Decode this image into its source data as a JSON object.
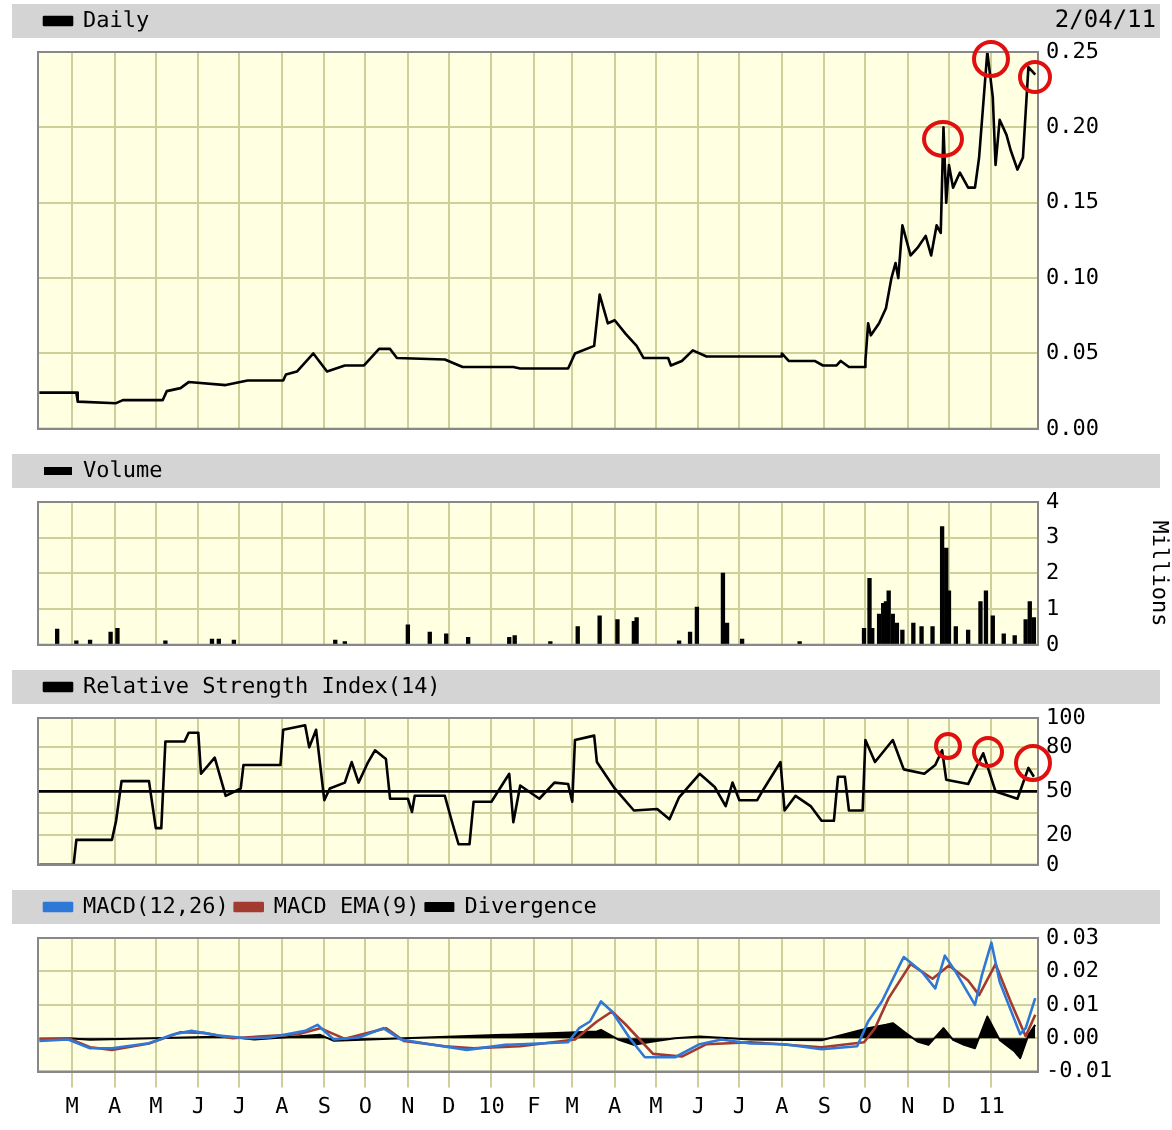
{
  "chart_data": [
    {
      "type": "line",
      "annotations": [
        "2/04/11"
      ],
      "legend": "top left",
      "grid": true,
      "tick_labels": "y",
      "series": [
        {
          "name": "Daily",
          "color": "#000000",
          "x": [
            "2009-02-05",
            "2009-03-04",
            "2009-03-05",
            "2009-04-02",
            "2009-04-07",
            "2009-05-06",
            "2009-05-09",
            "2009-05-19",
            "2009-05-25",
            "2009-06-21",
            "2009-07-07",
            "2009-08-02",
            "2009-08-04",
            "2009-08-12",
            "2009-08-24",
            "2009-09-03",
            "2009-09-16",
            "2009-09-30",
            "2009-10-11",
            "2009-10-19",
            "2009-10-24",
            "2009-11-28",
            "2009-12-11",
            "2010-01-17",
            "2010-01-22",
            "2010-02-26",
            "2010-03-03",
            "2010-03-17",
            "2010-03-21",
            "2010-03-27",
            "2010-04-01",
            "2010-04-09",
            "2010-04-17",
            "2010-04-22",
            "2010-05-10",
            "2010-05-12",
            "2010-05-20",
            "2010-05-28",
            "2010-06-07",
            "2010-07-31",
            "2010-08-01",
            "2010-08-06",
            "2010-08-25",
            "2010-08-31",
            "2010-09-10",
            "2010-09-13",
            "2010-09-19",
            "2010-09-30",
            "2010-10-01",
            "2010-10-03",
            "2010-10-05",
            "2010-10-11",
            "2010-10-16",
            "2010-10-20",
            "2010-10-23",
            "2010-10-25",
            "2010-10-28",
            "2010-11-03",
            "2010-11-08",
            "2010-11-14",
            "2010-11-18",
            "2010-11-22",
            "2010-11-25",
            "2010-11-27",
            "2010-11-29",
            "2010-12-01",
            "2010-12-04",
            "2010-12-09",
            "2010-12-15",
            "2010-12-20",
            "2010-12-23",
            "2010-12-29",
            "2011-01-02",
            "2011-01-04",
            "2011-01-07",
            "2011-01-12",
            "2011-01-15",
            "2011-01-20",
            "2011-01-24",
            "2011-01-28",
            "2011-02-02"
          ],
          "values": [
            0.024,
            0.024,
            0.018,
            0.017,
            0.019,
            0.019,
            0.025,
            0.027,
            0.031,
            0.029,
            0.032,
            0.032,
            0.036,
            0.038,
            0.05,
            0.038,
            0.042,
            0.042,
            0.053,
            0.053,
            0.047,
            0.046,
            0.041,
            0.041,
            0.04,
            0.04,
            0.05,
            0.055,
            0.089,
            0.07,
            0.072,
            0.063,
            0.055,
            0.047,
            0.047,
            0.042,
            0.045,
            0.052,
            0.048,
            0.048,
            0.05,
            0.045,
            0.045,
            0.042,
            0.042,
            0.045,
            0.041,
            0.041,
            0.045,
            0.07,
            0.062,
            0.07,
            0.08,
            0.1,
            0.11,
            0.1,
            0.135,
            0.115,
            0.12,
            0.128,
            0.115,
            0.135,
            0.13,
            0.2,
            0.15,
            0.175,
            0.16,
            0.17,
            0.16,
            0.16,
            0.18,
            0.25,
            0.22,
            0.175,
            0.205,
            0.195,
            0.185,
            0.172,
            0.18,
            0.24,
            0.235
          ]
        }
      ],
      "xlim": [
        "2009-02-04",
        "2011-02-04"
      ],
      "xticks": [
        "2009-03-01",
        "2009-04-01",
        "2009-05-01",
        "2009-06-01",
        "2009-07-01",
        "2009-08-01",
        "2009-09-01",
        "2009-10-01",
        "2009-11-01",
        "2009-12-01",
        "2010-01-01",
        "2010-02-01",
        "2010-03-01",
        "2010-04-01",
        "2010-05-01",
        "2010-06-01",
        "2010-07-01",
        "2010-08-01",
        "2010-09-01",
        "2010-10-01",
        "2010-11-01",
        "2010-12-01",
        "2011-01-01"
      ],
      "ylim": [
        0,
        0.25
      ],
      "yticks": [
        {
          "value": 0,
          "label": "0.00"
        },
        {
          "value": 0.05,
          "label": "0.05"
        },
        {
          "value": 0.1,
          "label": "0.10"
        },
        {
          "value": 0.15,
          "label": "0.15"
        },
        {
          "value": 0.2,
          "label": "0.20"
        },
        {
          "value": 0.25,
          "label": "0.25"
        }
      ]
    },
    {
      "type": "bar",
      "ylabel": "Millions",
      "legend": "top left",
      "grid": true,
      "tick_labels": "y",
      "series": [
        {
          "name": "Volume",
          "color": "#000000",
          "x": [
            "2009-02-18",
            "2009-03-04",
            "2009-03-14",
            "2009-03-29",
            "2009-04-03",
            "2009-05-08",
            "2009-06-11",
            "2009-06-16",
            "2009-06-27",
            "2009-09-09",
            "2009-09-16",
            "2009-11-01",
            "2009-11-17",
            "2009-11-29",
            "2009-12-15",
            "2010-01-14",
            "2010-01-18",
            "2010-02-13",
            "2010-03-05",
            "2010-03-21",
            "2010-04-03",
            "2010-04-15",
            "2010-04-17",
            "2010-05-18",
            "2010-05-26",
            "2010-05-31",
            "2010-06-19",
            "2010-06-22",
            "2010-07-03",
            "2010-08-14",
            "2010-09-30",
            "2010-10-04",
            "2010-10-06",
            "2010-10-11",
            "2010-10-14",
            "2010-10-16",
            "2010-10-18",
            "2010-10-21",
            "2010-10-24",
            "2010-10-28",
            "2010-11-05",
            "2010-11-11",
            "2010-11-19",
            "2010-11-26",
            "2010-11-29",
            "2010-12-01",
            "2010-12-06",
            "2010-12-15",
            "2010-12-24",
            "2010-12-28",
            "2011-01-02",
            "2011-01-10",
            "2011-01-18",
            "2011-01-26",
            "2011-01-29",
            "2011-02-01"
          ],
          "values": [
            0.43,
            0.1,
            0.12,
            0.35,
            0.45,
            0.1,
            0.15,
            0.15,
            0.12,
            0.12,
            0.08,
            0.55,
            0.35,
            0.3,
            0.2,
            0.2,
            0.25,
            0.08,
            0.5,
            0.8,
            0.7,
            0.65,
            0.75,
            0.1,
            0.35,
            1.05,
            2.0,
            0.6,
            0.15,
            0.08,
            0.45,
            1.85,
            0.45,
            0.85,
            1.15,
            1.2,
            1.5,
            0.85,
            0.6,
            0.4,
            0.6,
            0.5,
            0.5,
            3.3,
            2.7,
            1.5,
            0.5,
            0.4,
            1.2,
            1.5,
            0.8,
            0.3,
            0.25,
            0.7,
            1.2,
            0.75
          ]
        }
      ],
      "xlim": [
        "2009-02-04",
        "2011-02-04"
      ],
      "xticks": [
        "2009-03-01",
        "2009-04-01",
        "2009-05-01",
        "2009-06-01",
        "2009-07-01",
        "2009-08-01",
        "2009-09-01",
        "2009-10-01",
        "2009-11-01",
        "2009-12-01",
        "2010-01-01",
        "2010-02-01",
        "2010-03-01",
        "2010-04-01",
        "2010-05-01",
        "2010-06-01",
        "2010-07-01",
        "2010-08-01",
        "2010-09-01",
        "2010-10-01",
        "2010-11-01",
        "2010-12-01",
        "2011-01-01"
      ],
      "ylim": [
        0,
        4
      ],
      "yticks": [
        0,
        1,
        2,
        3,
        4
      ]
    },
    {
      "type": "line",
      "legend": "top left",
      "grid": true,
      "tick_labels": "y",
      "ref_lines": [
        {
          "axis": "y",
          "value": 50,
          "color": "#000000"
        }
      ],
      "series": [
        {
          "name": "Relative Strength Index(14)",
          "color": "#000000",
          "x": [
            "2009-02-05",
            "2009-03-02",
            "2009-03-04",
            "2009-03-30",
            "2009-04-02",
            "2009-04-06",
            "2009-04-26",
            "2009-05-01",
            "2009-05-05",
            "2009-05-08",
            "2009-05-22",
            "2009-05-25",
            "2009-06-01",
            "2009-06-03",
            "2009-06-13",
            "2009-06-21",
            "2009-07-02",
            "2009-07-04",
            "2009-07-31",
            "2009-08-02",
            "2009-08-18",
            "2009-08-21",
            "2009-08-26",
            "2009-09-01",
            "2009-09-05",
            "2009-09-16",
            "2009-09-21",
            "2009-09-26",
            "2009-10-03",
            "2009-10-08",
            "2009-10-16",
            "2009-10-19",
            "2009-11-01",
            "2009-11-04",
            "2009-11-06",
            "2009-11-28",
            "2009-12-03",
            "2009-12-08",
            "2009-12-16",
            "2009-12-19",
            "2010-01-01",
            "2010-01-14",
            "2010-01-17",
            "2010-01-22",
            "2010-02-05",
            "2010-02-16",
            "2010-02-26",
            "2010-03-01",
            "2010-03-03",
            "2010-03-17",
            "2010-03-19",
            "2010-04-01",
            "2010-04-15",
            "2010-05-02",
            "2010-05-11",
            "2010-05-18",
            "2010-06-02",
            "2010-06-13",
            "2010-06-21",
            "2010-06-26",
            "2010-07-01",
            "2010-07-14",
            "2010-07-19",
            "2010-07-31",
            "2010-08-03",
            "2010-08-11",
            "2010-08-22",
            "2010-08-30",
            "2010-09-08",
            "2010-09-11",
            "2010-09-16",
            "2010-09-19",
            "2010-09-29",
            "2010-10-01",
            "2010-10-08",
            "2010-10-21",
            "2010-10-29",
            "2010-11-13",
            "2010-11-21",
            "2010-11-26",
            "2010-11-29",
            "2010-12-15",
            "2010-12-26",
            "2011-01-04",
            "2011-01-20",
            "2011-01-28",
            "2011-02-01"
          ],
          "values": [
            0,
            0,
            17,
            17,
            30,
            57,
            57,
            25,
            25,
            84,
            84,
            90,
            90,
            62,
            73,
            47,
            52,
            68,
            68,
            92,
            95,
            80,
            92,
            44,
            52,
            56,
            70,
            56,
            70,
            78,
            72,
            45,
            45,
            36,
            47,
            47,
            30,
            14,
            14,
            43,
            43,
            62,
            29,
            54,
            45,
            56,
            55,
            43,
            85,
            88,
            70,
            52,
            37,
            38,
            31,
            46,
            62,
            53,
            40,
            56,
            44,
            44,
            52,
            70,
            37,
            47,
            40,
            30,
            30,
            60,
            60,
            37,
            37,
            85,
            70,
            85,
            65,
            62,
            68,
            78,
            58,
            55,
            76,
            50,
            45,
            66,
            60
          ]
        }
      ],
      "xlim": [
        "2009-02-04",
        "2011-02-04"
      ],
      "xticks": [
        "2009-03-01",
        "2009-04-01",
        "2009-05-01",
        "2009-06-01",
        "2009-07-01",
        "2009-08-01",
        "2009-09-01",
        "2009-10-01",
        "2009-11-01",
        "2009-12-01",
        "2010-01-01",
        "2010-02-01",
        "2010-03-01",
        "2010-04-01",
        "2010-05-01",
        "2010-06-01",
        "2010-07-01",
        "2010-08-01",
        "2010-09-01",
        "2010-10-01",
        "2010-11-01",
        "2010-12-01",
        "2011-01-01"
      ],
      "ylim": [
        0,
        100
      ],
      "yticks": [
        0,
        20,
        {
          "value": 35,
          "label": null
        },
        50,
        {
          "value": 65,
          "label": null
        },
        80,
        100
      ]
    },
    {
      "type": "line",
      "legend": "top left",
      "grid": true,
      "series": [
        {
          "name": "MACD(12,26)",
          "color": "#2f78d8",
          "x": [
            "2009-02-05",
            "2009-02-26",
            "2009-03-14",
            "2009-03-30",
            "2009-04-26",
            "2009-05-14",
            "2009-05-27",
            "2009-06-16",
            "2009-07-07",
            "2009-07-23",
            "2009-08-18",
            "2009-08-27",
            "2009-09-08",
            "2009-09-26",
            "2009-10-14",
            "2009-10-27",
            "2009-11-17",
            "2009-12-14",
            "2010-01-11",
            "2010-02-26",
            "2010-03-06",
            "2010-03-14",
            "2010-03-22",
            "2010-03-30",
            "2010-04-12",
            "2010-04-23",
            "2010-05-15",
            "2010-06-02",
            "2010-06-18",
            "2010-07-09",
            "2010-08-03",
            "2010-08-30",
            "2010-09-25",
            "2010-10-03",
            "2010-10-13",
            "2010-10-27",
            "2010-10-29",
            "2010-11-11",
            "2010-11-21",
            "2010-11-28",
            "2010-12-06",
            "2010-12-20",
            "2010-12-25",
            "2011-01-01",
            "2011-01-07",
            "2011-01-22",
            "2011-01-26",
            "2011-02-02"
          ],
          "values": [
            -0.0008,
            -0.0004,
            -0.003,
            -0.003,
            -0.0015,
            0.0012,
            0.0022,
            0.0008,
            0,
            0.0002,
            0.0022,
            0.004,
            -0.0004,
            0.0002,
            0.003,
            -0.0004,
            -0.0018,
            -0.0035,
            -0.002,
            -0.0012,
            0.003,
            0.005,
            0.011,
            0.008,
            0,
            -0.0057,
            -0.0057,
            -0.0018,
            -0.0004,
            -0.0016,
            -0.0018,
            -0.0033,
            -0.0024,
            0.005,
            0.011,
            0.0227,
            0.0243,
            0.02,
            0.0149,
            0.0247,
            0.0198,
            0.01,
            0.0188,
            0.0286,
            0.0169,
            0.0012,
            0.003,
            0.012
          ]
        },
        {
          "name": "MACD EMA(9)",
          "color": "#a33a30",
          "x": [
            "2009-02-05",
            "2009-02-26",
            "2009-03-14",
            "2009-03-30",
            "2009-04-26",
            "2009-05-19",
            "2009-06-05",
            "2009-06-26",
            "2009-08-13",
            "2009-08-29",
            "2009-09-16",
            "2009-10-16",
            "2009-10-29",
            "2009-11-28",
            "2009-12-19",
            "2010-01-22",
            "2010-03-03",
            "2010-03-19",
            "2010-03-30",
            "2010-04-09",
            "2010-04-29",
            "2010-05-20",
            "2010-06-07",
            "2010-07-09",
            "2010-08-30",
            "2010-09-30",
            "2010-10-08",
            "2010-10-18",
            "2010-11-03",
            "2010-11-19",
            "2010-12-01",
            "2010-12-15",
            "2010-12-23",
            "2011-01-04",
            "2011-01-15",
            "2011-01-26",
            "2011-02-02"
          ],
          "values": [
            -0.0002,
            0,
            -0.0027,
            -0.0035,
            -0.0016,
            0.0018,
            0.0016,
            0,
            0.0012,
            0.003,
            -0.0002,
            0.003,
            -0.0008,
            -0.0024,
            -0.003,
            -0.0024,
            -0.0004,
            0.005,
            0.008,
            0.0041,
            -0.0047,
            -0.0055,
            -0.0018,
            -0.0012,
            -0.0027,
            -0.0012,
            0.003,
            0.012,
            0.0222,
            0.0178,
            0.0218,
            0.0173,
            0.0129,
            0.0222,
            0.011,
            0.0006,
            0.007
          ]
        },
        {
          "name": "Divergence",
          "color": "#000000",
          "type": "area",
          "x": [
            "2009-02-26",
            "2009-03-14",
            "2009-06-21",
            "2009-07-12",
            "2009-08-29",
            "2009-09-08",
            "2010-03-19",
            "2010-03-22",
            "2010-04-04",
            "2010-04-15",
            "2010-04-29",
            "2010-05-15",
            "2010-06-02",
            "2010-07-09",
            "2010-08-30",
            "2010-10-03",
            "2010-10-16",
            "2010-10-21",
            "2010-10-29",
            "2010-11-08",
            "2010-11-16",
            "2010-11-27",
            "2010-12-04",
            "2010-12-12",
            "2010-12-20",
            "2010-12-29",
            "2011-01-07",
            "2011-01-18",
            "2011-01-22",
            "2011-01-28",
            "2011-02-02"
          ],
          "values": [
            0,
            -0.0005,
            0.0005,
            -0.0004,
            0.001,
            -0.0008,
            0.002,
            0.0025,
            -0.0005,
            -0.002,
            -0.001,
            0,
            0.0005,
            -0.0004,
            -0.0006,
            0.003,
            0.004,
            0.0045,
            0.002,
            -0.001,
            -0.002,
            0.003,
            -0.0005,
            -0.002,
            -0.003,
            0.0065,
            -0.0005,
            -0.004,
            -0.006,
            0.001,
            0.004
          ]
        }
      ],
      "xlim": [
        "2009-02-04",
        "2011-02-04"
      ],
      "xticks": [
        {
          "value": "2009-03-01",
          "label": "M"
        },
        {
          "value": "2009-04-01",
          "label": "A"
        },
        {
          "value": "2009-05-01",
          "label": "M"
        },
        {
          "value": "2009-06-01",
          "label": "J"
        },
        {
          "value": "2009-07-01",
          "label": "J"
        },
        {
          "value": "2009-08-01",
          "label": "A"
        },
        {
          "value": "2009-09-01",
          "label": "S"
        },
        {
          "value": "2009-10-01",
          "label": "O"
        },
        {
          "value": "2009-11-01",
          "label": "N"
        },
        {
          "value": "2009-12-01",
          "label": "D"
        },
        {
          "value": "2010-01-01",
          "label": "10"
        },
        {
          "value": "2010-02-01",
          "label": "F"
        },
        {
          "value": "2010-03-01",
          "label": "M"
        },
        {
          "value": "2010-04-01",
          "label": "A"
        },
        {
          "value": "2010-05-01",
          "label": "M"
        },
        {
          "value": "2010-06-01",
          "label": "J"
        },
        {
          "value": "2010-07-01",
          "label": "J"
        },
        {
          "value": "2010-08-01",
          "label": "A"
        },
        {
          "value": "2010-09-01",
          "label": "S"
        },
        {
          "value": "2010-10-01",
          "label": "O"
        },
        {
          "value": "2010-11-01",
          "label": "N"
        },
        {
          "value": "2010-12-01",
          "label": "D"
        },
        {
          "value": "2011-01-01",
          "label": "11"
        }
      ],
      "ylim": [
        -0.01,
        0.03
      ],
      "yticks": [
        {
          "value": -0.01,
          "label": "-0.01"
        },
        {
          "value": 0,
          "label": "0.00"
        },
        {
          "value": 0.01,
          "label": "0.01"
        },
        {
          "value": 0.02,
          "label": "0.02"
        },
        {
          "value": 0.03,
          "label": "0.03"
        }
      ]
    }
  ]
}
